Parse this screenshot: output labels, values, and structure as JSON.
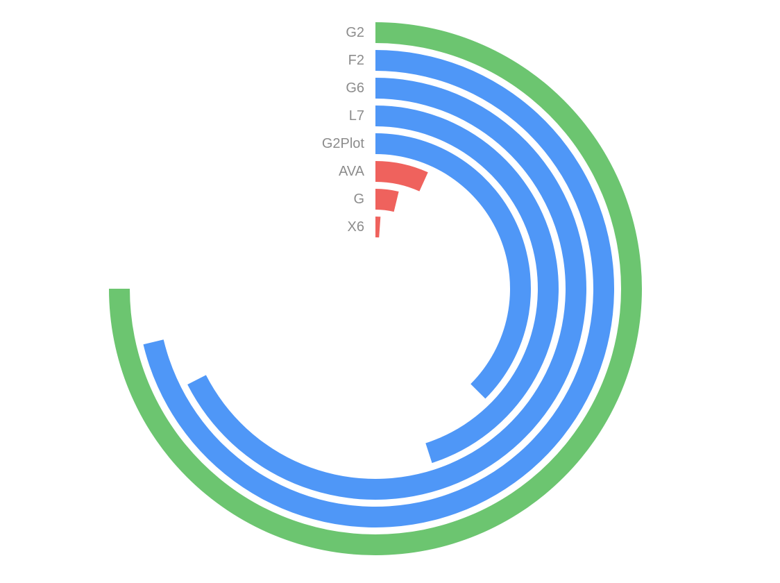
{
  "chart_data": {
    "type": "bar",
    "subtype": "radial-bar",
    "title": "",
    "xlabel": "",
    "ylabel": "",
    "categories": [
      "G2",
      "F2",
      "G6",
      "L7",
      "G2Plot",
      "AVA",
      "G",
      "X6"
    ],
    "values": [
      10000,
      9500,
      9000,
      6000,
      5000,
      900,
      500,
      150
    ],
    "colors": [
      "#6cc570",
      "#4f97f7",
      "#4f97f7",
      "#4f97f7",
      "#4f97f7",
      "#ef625d",
      "#ef625d",
      "#ef625d"
    ],
    "ylim": [
      0,
      13333
    ],
    "start_angle_deg": 0,
    "end_angle_deg": 270,
    "grid": false,
    "legend": "none"
  }
}
